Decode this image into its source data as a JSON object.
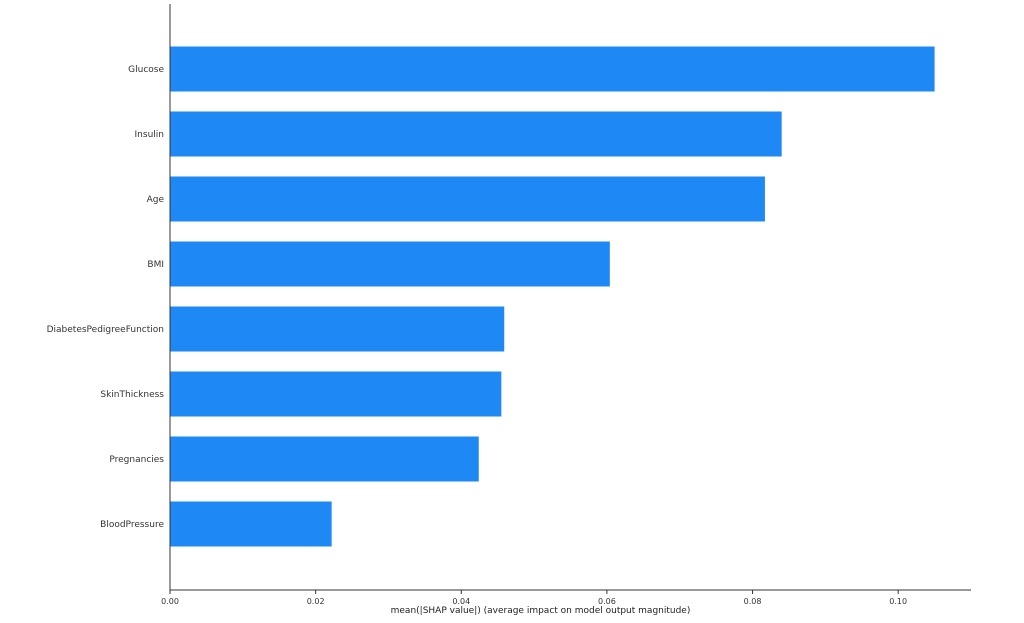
{
  "chart_data": {
    "type": "bar",
    "orientation": "horizontal",
    "categories": [
      "Glucose",
      "Insulin",
      "Age",
      "BMI",
      "DiabetesPedigreeFunction",
      "SkinThickness",
      "Pregnancies",
      "BloodPressure"
    ],
    "values": [
      0.105,
      0.084,
      0.0817,
      0.0604,
      0.0459,
      0.0455,
      0.0424,
      0.0222
    ],
    "xlabel": "mean(|SHAP value|) (average impact on model output magnitude)",
    "xticks": [
      "0.00",
      "0.02",
      "0.04",
      "0.06",
      "0.08",
      "0.10"
    ],
    "xlim": [
      0,
      0.11
    ],
    "grid": false,
    "bar_color": "#1e88f5"
  }
}
